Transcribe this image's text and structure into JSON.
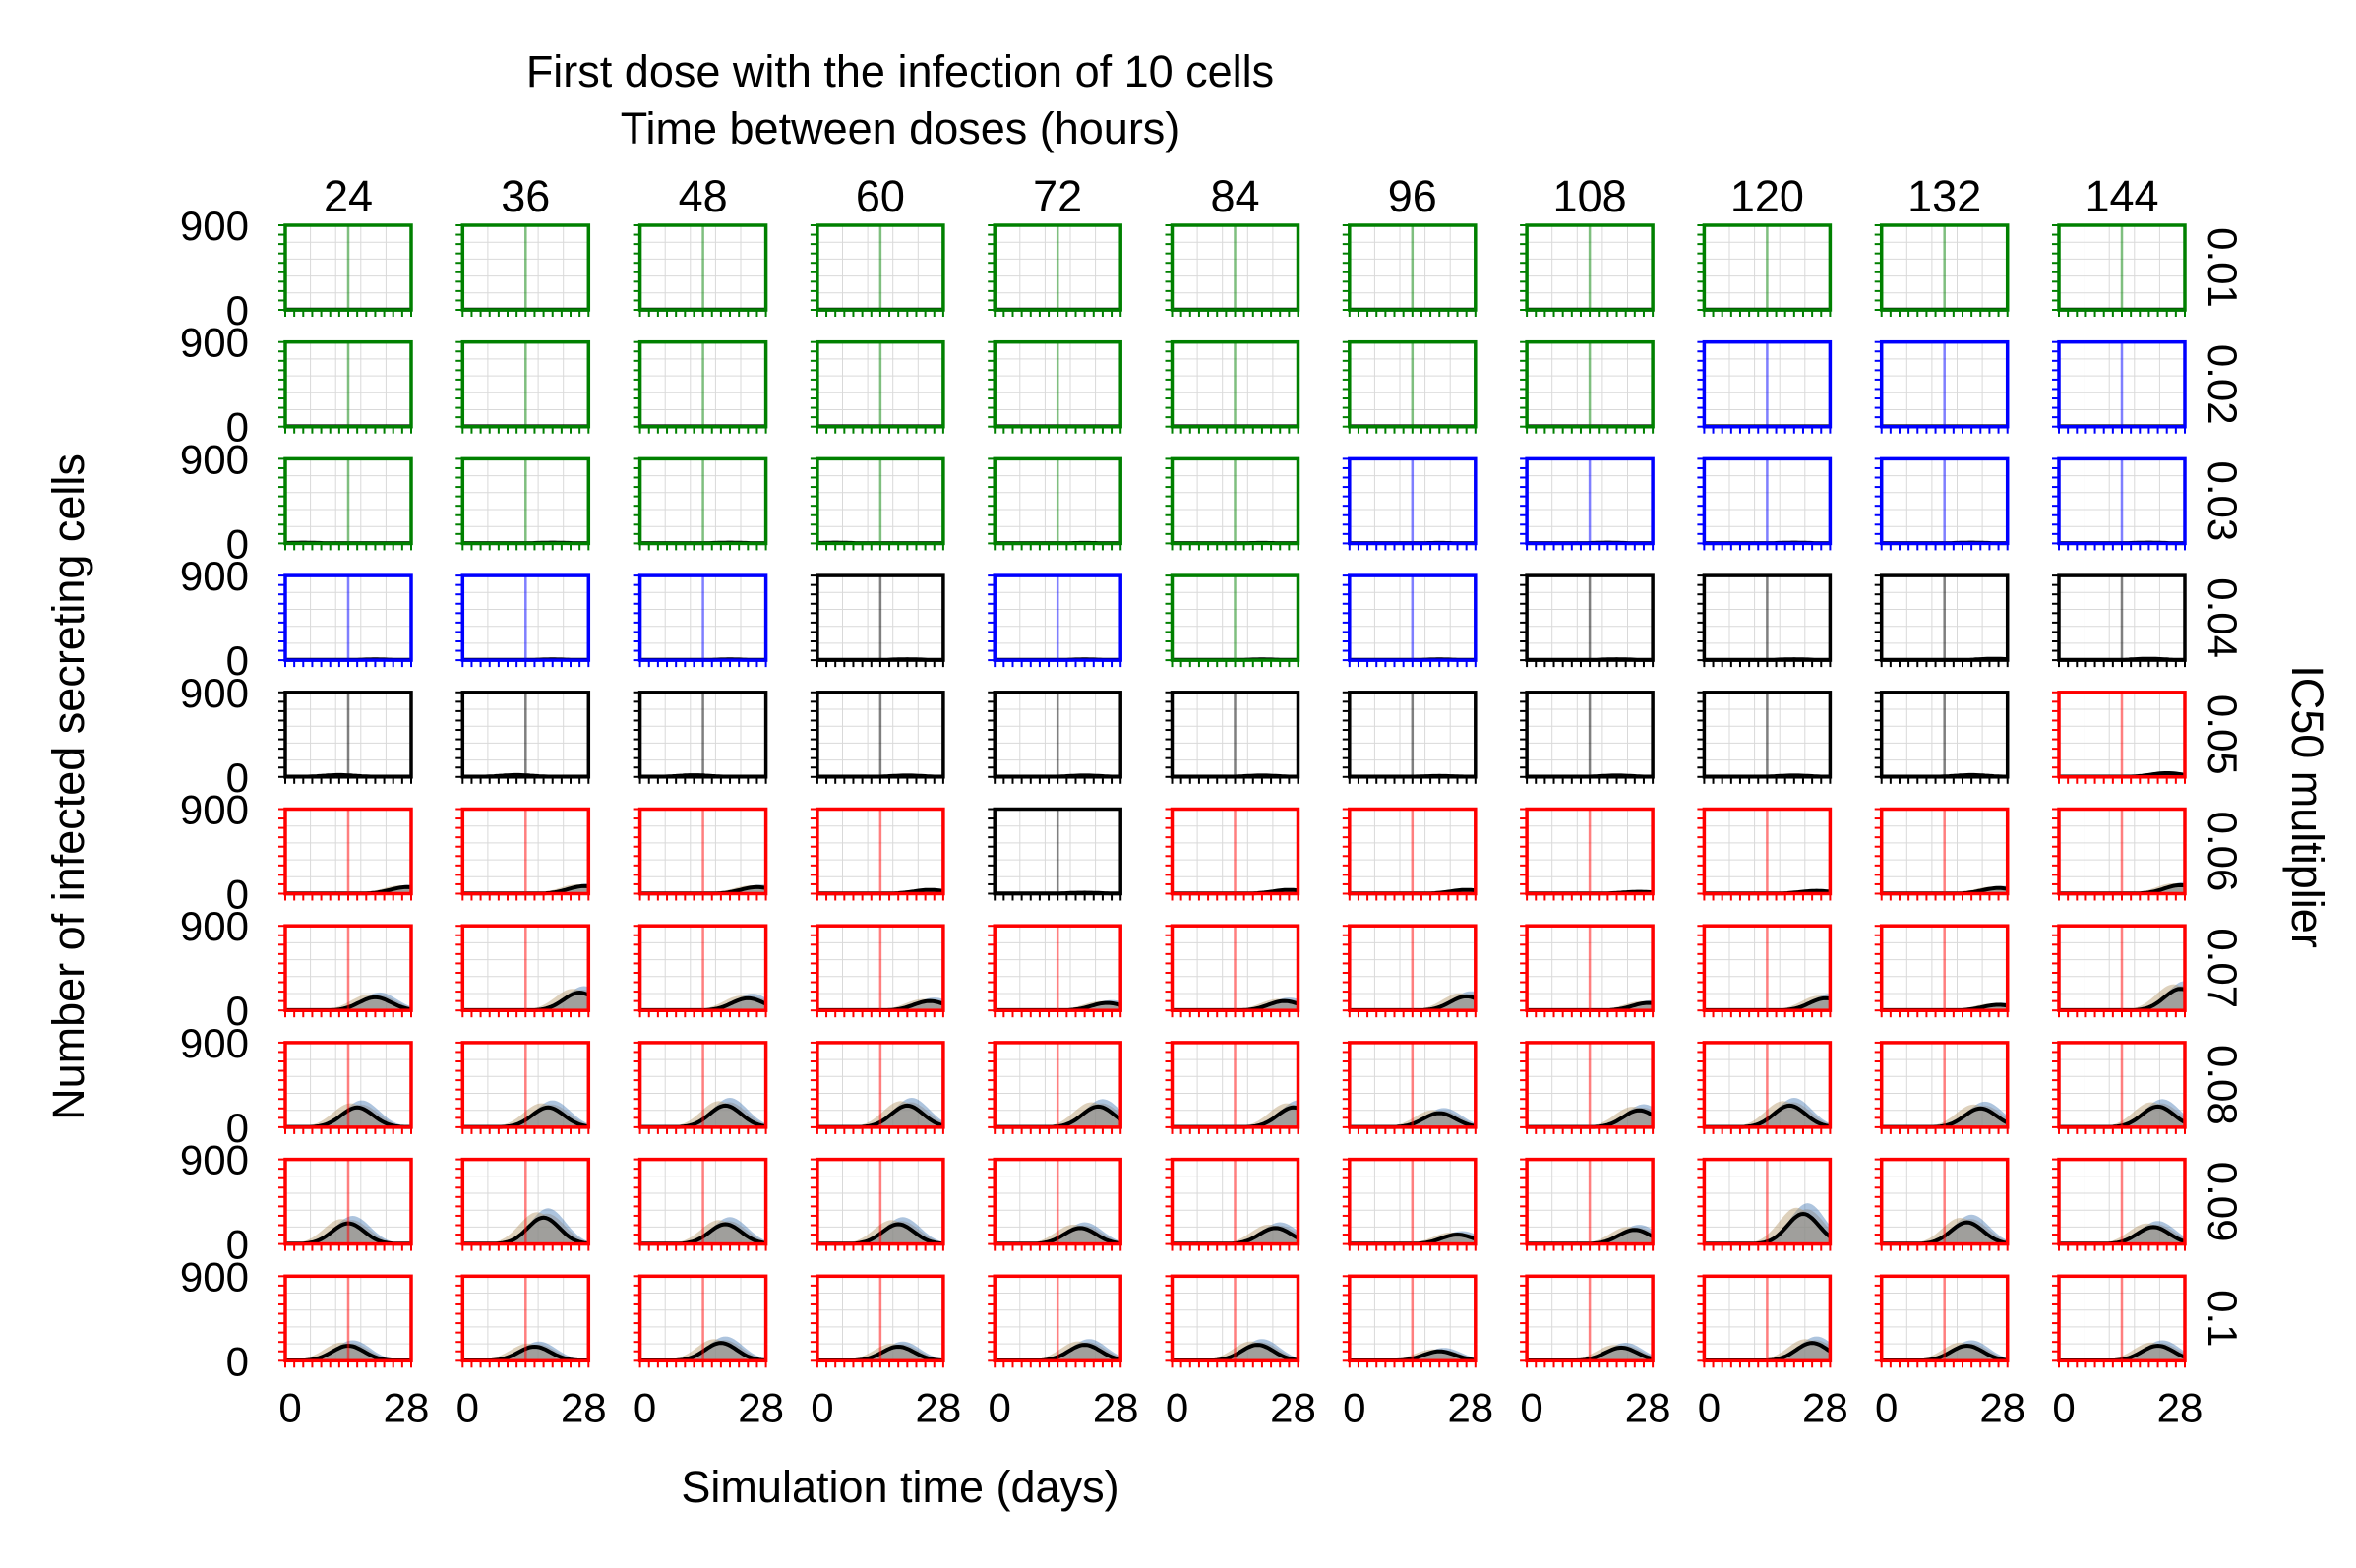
{
  "chart_data": {
    "type": "line",
    "title": "First dose with the infection of 10 cells",
    "subtitle": "Time between doses (hours)",
    "xlabel": "Simulation time (days)",
    "ylabel": "Number of infected secreting cells",
    "right_label": "IC50 multiplier",
    "columns": [
      "24",
      "36",
      "48",
      "60",
      "72",
      "84",
      "96",
      "108",
      "120",
      "132",
      "144"
    ],
    "rows": [
      "0.01",
      "0.02",
      "0.03",
      "0.04",
      "0.05",
      "0.06",
      "0.07",
      "0.08",
      "0.09",
      "0.1"
    ],
    "xlim": [
      0,
      28
    ],
    "ylim": [
      0,
      900
    ],
    "x_tick_labels": [
      "0",
      "28"
    ],
    "y_tick_labels": [
      "0",
      "900"
    ],
    "grid": true,
    "vline_day": 14,
    "border_classes": [
      [
        "g",
        "g",
        "g",
        "g",
        "g",
        "g",
        "g",
        "g",
        "g",
        "g",
        "g"
      ],
      [
        "g",
        "g",
        "g",
        "g",
        "g",
        "g",
        "g",
        "g",
        "b",
        "b",
        "b"
      ],
      [
        "g",
        "g",
        "g",
        "g",
        "g",
        "g",
        "b",
        "b",
        "b",
        "b",
        "b"
      ],
      [
        "b",
        "b",
        "b",
        "k",
        "b",
        "g",
        "b",
        "k",
        "k",
        "k",
        "k"
      ],
      [
        "k",
        "k",
        "k",
        "k",
        "k",
        "k",
        "k",
        "k",
        "k",
        "k",
        "r"
      ],
      [
        "r",
        "r",
        "r",
        "r",
        "k",
        "r",
        "r",
        "r",
        "r",
        "r",
        "r"
      ],
      [
        "r",
        "r",
        "r",
        "r",
        "r",
        "r",
        "r",
        "r",
        "r",
        "r",
        "r"
      ],
      [
        "r",
        "r",
        "r",
        "r",
        "r",
        "r",
        "r",
        "r",
        "r",
        "r",
        "r"
      ],
      [
        "r",
        "r",
        "r",
        "r",
        "r",
        "r",
        "r",
        "r",
        "r",
        "r",
        "r"
      ],
      [
        "r",
        "r",
        "r",
        "r",
        "r",
        "r",
        "r",
        "r",
        "r",
        "r",
        "r"
      ]
    ],
    "peak_day": [
      [
        20,
        20,
        20,
        20,
        20,
        20,
        20,
        20,
        20,
        20,
        20
      ],
      [
        20,
        20,
        20,
        20,
        20,
        20,
        20,
        20,
        20,
        20,
        20
      ],
      [
        4,
        20,
        20,
        4,
        20,
        20,
        20,
        18,
        20,
        20,
        20
      ],
      [
        20,
        20,
        20,
        20,
        20,
        20,
        20,
        20,
        20,
        25,
        20
      ],
      [
        12,
        12,
        12,
        20,
        20,
        20,
        20,
        20,
        20,
        20,
        24
      ],
      [
        27,
        27,
        26,
        25,
        20,
        26,
        26,
        25,
        25,
        26,
        27
      ],
      [
        20,
        26,
        24,
        25,
        25,
        25,
        26,
        27,
        27,
        26,
        27
      ],
      [
        16,
        19,
        19,
        20,
        23,
        27,
        20,
        25,
        19,
        22,
        22
      ],
      [
        14,
        18,
        19,
        18,
        19,
        23,
        24,
        24,
        22,
        19,
        21
      ],
      [
        14,
        16,
        18,
        18,
        20,
        19,
        20,
        21,
        24,
        19,
        22
      ]
    ],
    "peak_value": [
      [
        0,
        0,
        0,
        0,
        0,
        0,
        0,
        0,
        0,
        0,
        0
      ],
      [
        0,
        0,
        0,
        0,
        0,
        0,
        0,
        0,
        0,
        0,
        0
      ],
      [
        8,
        8,
        8,
        8,
        5,
        5,
        5,
        8,
        8,
        8,
        8
      ],
      [
        8,
        8,
        8,
        10,
        8,
        8,
        8,
        10,
        10,
        15,
        15
      ],
      [
        20,
        20,
        18,
        15,
        15,
        15,
        10,
        15,
        15,
        20,
        40
      ],
      [
        70,
        80,
        70,
        40,
        10,
        40,
        40,
        20,
        30,
        60,
        90
      ],
      [
        140,
        190,
        130,
        100,
        80,
        100,
        150,
        80,
        130,
        60,
        230
      ],
      [
        210,
        210,
        230,
        230,
        220,
        210,
        150,
        180,
        230,
        200,
        220
      ],
      [
        220,
        280,
        210,
        210,
        170,
        170,
        100,
        150,
        320,
        230,
        180
      ],
      [
        160,
        150,
        190,
        150,
        170,
        170,
        100,
        140,
        190,
        160,
        160
      ]
    ],
    "series_colors": {
      "mean": "#000000",
      "band_blue": "#4a7db5",
      "band_tan": "#b59a6a",
      "band_gray": "#8c8c8c"
    },
    "border_colors": {
      "g": "#008000",
      "b": "#0000ff",
      "k": "#000000",
      "r": "#ff0000"
    }
  }
}
